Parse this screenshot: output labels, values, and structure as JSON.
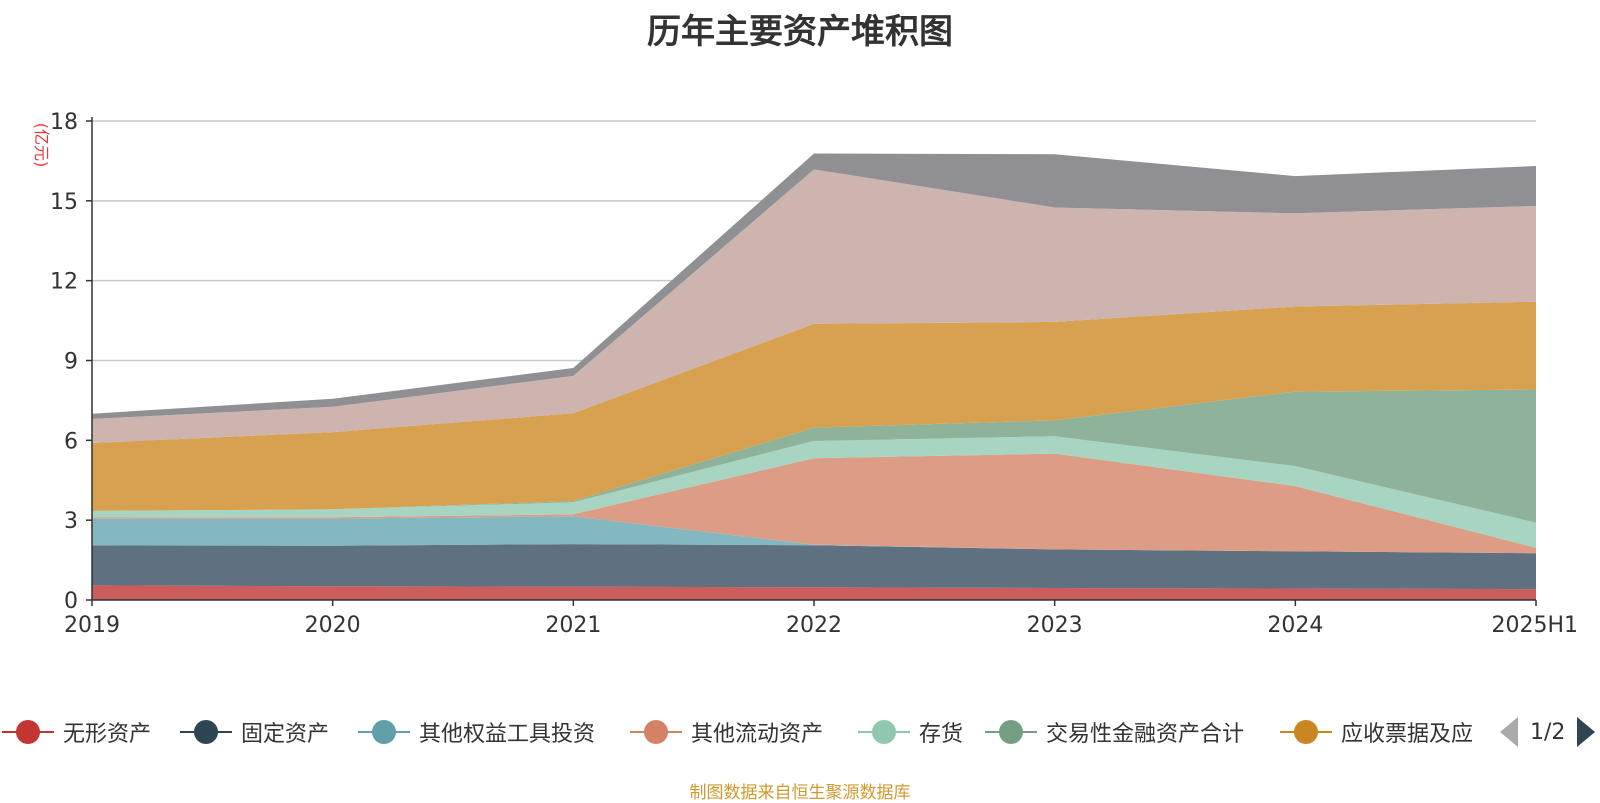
{
  "colors": {
    "title": "#333333",
    "unit": "#e83a3a",
    "source": "#d19a2e"
  },
  "legend": {
    "pager_text": "1/2",
    "prev_icon": "triangle-left-icon",
    "next_icon": "triangle-right-icon",
    "items": [
      {
        "label": "无形资产",
        "color": "#c23531"
      },
      {
        "label": "固定资产",
        "color": "#2f4554"
      },
      {
        "label": "其他权益工具投资",
        "color": "#61a0a8"
      },
      {
        "label": "其他流动资产",
        "color": "#d48265"
      },
      {
        "label": "存货",
        "color": "#91c7ae"
      },
      {
        "label": "交易性金融资产合计",
        "color": "#749f83"
      },
      {
        "label": "应收票据及应",
        "color": "#ca8622"
      }
    ]
  },
  "footer": {
    "source": "制图数据来自恒生聚源数据库"
  },
  "chart_data": {
    "type": "area",
    "stacked": true,
    "title": "历年主要资产堆积图",
    "ylabel": "(亿元)",
    "xlabel": "",
    "categories": [
      "2019",
      "2020",
      "2021",
      "2022",
      "2023",
      "2024",
      "2025H1"
    ],
    "ylim": [
      0,
      18
    ],
    "yticks": [
      0,
      3,
      6,
      9,
      12,
      15,
      18
    ],
    "grid": true,
    "legend_position": "bottom",
    "series": [
      {
        "name": "无形资产",
        "color": "#cd5c5c",
        "values": [
          0.55,
          0.52,
          0.5,
          0.48,
          0.45,
          0.43,
          0.41
        ]
      },
      {
        "name": "固定资产",
        "color": "#5f7181",
        "values": [
          1.5,
          1.52,
          1.6,
          1.58,
          1.45,
          1.4,
          1.35
        ]
      },
      {
        "name": "其他权益工具投资",
        "color": "#84b8c0",
        "values": [
          1.0,
          1.02,
          1.05,
          0.02,
          0.0,
          0.0,
          0.0
        ]
      },
      {
        "name": "其他流动资产",
        "color": "#dd9c86",
        "values": [
          0.05,
          0.05,
          0.07,
          3.25,
          3.6,
          2.45,
          0.2
        ]
      },
      {
        "name": "存货",
        "color": "#a7d5c1",
        "values": [
          0.25,
          0.3,
          0.45,
          0.65,
          0.65,
          0.75,
          0.95
        ]
      },
      {
        "name": "交易性金融资产合计",
        "color": "#8fb29b",
        "values": [
          0.0,
          0.0,
          0.05,
          0.5,
          0.6,
          2.8,
          5.0
        ]
      },
      {
        "name": "应收票据及应",
        "color": "#d7a150",
        "values": [
          2.55,
          2.9,
          3.3,
          3.9,
          3.7,
          3.2,
          3.3
        ]
      },
      {
        "name": "",
        "color": "#cdb4af",
        "values": [
          0.9,
          0.95,
          1.4,
          5.8,
          4.3,
          3.5,
          3.6
        ]
      },
      {
        "name": "",
        "color": "#8f8f94",
        "values": [
          0.2,
          0.3,
          0.3,
          0.6,
          2.0,
          1.4,
          1.5
        ]
      }
    ]
  }
}
